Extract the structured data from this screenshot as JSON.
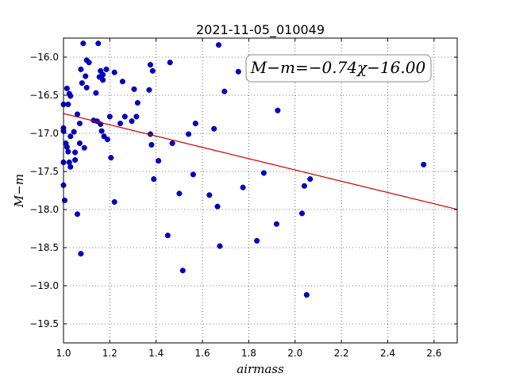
{
  "chart_data": {
    "type": "scatter",
    "title": "2021-11-05_010049",
    "xlabel": "airmass",
    "ylabel": "M−m",
    "xlim": [
      1.0,
      2.7
    ],
    "ylim": [
      -16.0,
      -19.5
    ],
    "y_display_range": [
      -15.75,
      -19.75
    ],
    "x_ticks": [
      "1.0",
      "1.2",
      "1.4",
      "1.6",
      "1.8",
      "2.0",
      "2.2",
      "2.4",
      "2.6"
    ],
    "y_ticks": [
      "−16.0",
      "−16.5",
      "−17.0",
      "−17.5",
      "−18.0",
      "−18.5",
      "−19.0",
      "−19.5"
    ],
    "grid": true,
    "annotation": "M−m=−0.74χ−16.00",
    "fit": {
      "slope": -0.74,
      "intercept": -16.0,
      "color": "#cc0000"
    },
    "marker_color": "#0000cc",
    "points": [
      [
        1.0,
        -16.62
      ],
      [
        1.0,
        -16.93
      ],
      [
        1.0,
        -16.97
      ],
      [
        1.0,
        -17.38
      ],
      [
        1.0,
        -17.68
      ],
      [
        1.005,
        -17.88
      ],
      [
        1.01,
        -17.13
      ],
      [
        1.015,
        -16.41
      ],
      [
        1.015,
        -17.18
      ],
      [
        1.02,
        -16.62
      ],
      [
        1.02,
        -17.24
      ],
      [
        1.025,
        -16.48
      ],
      [
        1.025,
        -17.38
      ],
      [
        1.03,
        -16.51
      ],
      [
        1.03,
        -17.04
      ],
      [
        1.03,
        -17.44
      ],
      [
        1.045,
        -16.98
      ],
      [
        1.05,
        -17.25
      ],
      [
        1.05,
        -17.35
      ],
      [
        1.06,
        -16.75
      ],
      [
        1.06,
        -18.06
      ],
      [
        1.07,
        -16.87
      ],
      [
        1.07,
        -17.13
      ],
      [
        1.075,
        -16.16
      ],
      [
        1.075,
        -18.58
      ],
      [
        1.08,
        -16.34
      ],
      [
        1.085,
        -15.82
      ],
      [
        1.09,
        -17.19
      ],
      [
        1.095,
        -16.25
      ],
      [
        1.1,
        -16.04
      ],
      [
        1.1,
        -16.4
      ],
      [
        1.11,
        -16.07
      ],
      [
        1.13,
        -16.83
      ],
      [
        1.14,
        -16.47
      ],
      [
        1.145,
        -16.84
      ],
      [
        1.15,
        -15.82
      ],
      [
        1.155,
        -16.26
      ],
      [
        1.16,
        -16.18
      ],
      [
        1.16,
        -16.88
      ],
      [
        1.165,
        -16.97
      ],
      [
        1.17,
        -16.23
      ],
      [
        1.17,
        -16.3
      ],
      [
        1.175,
        -17.04
      ],
      [
        1.185,
        -16.16
      ],
      [
        1.19,
        -17.08
      ],
      [
        1.2,
        -16.78
      ],
      [
        1.205,
        -17.32
      ],
      [
        1.22,
        -16.2
      ],
      [
        1.22,
        -17.9
      ],
      [
        1.245,
        -16.87
      ],
      [
        1.255,
        -16.32
      ],
      [
        1.265,
        -16.78
      ],
      [
        1.295,
        -16.84
      ],
      [
        1.305,
        -16.42
      ],
      [
        1.315,
        -16.78
      ],
      [
        1.32,
        -16.6
      ],
      [
        1.37,
        -16.43
      ],
      [
        1.375,
        -16.1
      ],
      [
        1.375,
        -17.01
      ],
      [
        1.38,
        -17.15
      ],
      [
        1.385,
        -16.18
      ],
      [
        1.39,
        -17.6
      ],
      [
        1.41,
        -17.36
      ],
      [
        1.45,
        -18.34
      ],
      [
        1.46,
        -16.07
      ],
      [
        1.47,
        -17.13
      ],
      [
        1.5,
        -17.79
      ],
      [
        1.515,
        -18.8
      ],
      [
        1.54,
        -17.01
      ],
      [
        1.56,
        -17.54
      ],
      [
        1.57,
        -16.87
      ],
      [
        1.63,
        -17.81
      ],
      [
        1.65,
        -16.94
      ],
      [
        1.665,
        -17.96
      ],
      [
        1.67,
        -15.84
      ],
      [
        1.675,
        -18.48
      ],
      [
        1.695,
        -16.45
      ],
      [
        1.755,
        -16.19
      ],
      [
        1.775,
        -17.71
      ],
      [
        1.835,
        -18.41
      ],
      [
        1.865,
        -17.52
      ],
      [
        1.92,
        -18.19
      ],
      [
        1.925,
        -16.7
      ],
      [
        2.03,
        -18.05
      ],
      [
        2.04,
        -17.69
      ],
      [
        2.05,
        -19.12
      ],
      [
        2.065,
        -17.6
      ],
      [
        2.555,
        -17.41
      ]
    ]
  }
}
